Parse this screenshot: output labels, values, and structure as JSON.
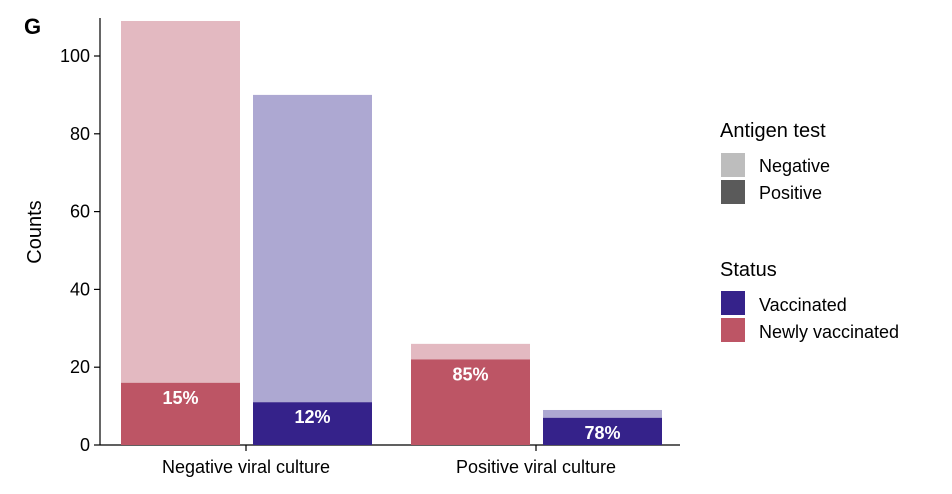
{
  "panel_label": "G",
  "chart_data": {
    "type": "bar",
    "categories": [
      "Negative viral culture",
      "Positive viral culture"
    ],
    "groups": [
      "Newly vaccinated",
      "Vaccinated"
    ],
    "ylabel": "Counts",
    "xlabel": "",
    "ylim": [
      0,
      110
    ],
    "yticks": [
      0,
      20,
      40,
      60,
      80,
      100
    ],
    "stacked": true,
    "bars": [
      {
        "category": "Negative viral culture",
        "status": "Newly vaccinated",
        "antigen_negative": 93,
        "antigen_positive": 16,
        "label": "15%"
      },
      {
        "category": "Negative viral culture",
        "status": "Vaccinated",
        "antigen_negative": 79,
        "antigen_positive": 11,
        "label": "12%"
      },
      {
        "category": "Positive viral culture",
        "status": "Newly vaccinated",
        "antigen_negative": 4,
        "antigen_positive": 22,
        "label": "85%"
      },
      {
        "category": "Positive viral culture",
        "status": "Vaccinated",
        "antigen_negative": 2,
        "antigen_positive": 7,
        "label": "78%"
      }
    ],
    "colors": {
      "Newly vaccinated": {
        "positive": "#bd5565",
        "negative": "#e3b9c1"
      },
      "Vaccinated": {
        "positive": "#35228a",
        "negative": "#ada8d2"
      }
    },
    "legend_placement": "right",
    "grid": false
  },
  "legend": {
    "antigen_title": "Antigen test",
    "antigen_items": [
      {
        "label": "Negative",
        "color": "#bdbdbd"
      },
      {
        "label": "Positive",
        "color": "#5a5a5a"
      }
    ],
    "status_title": "Status",
    "status_items": [
      {
        "label": "Vaccinated",
        "color": "#35228a"
      },
      {
        "label": "Newly vaccinated",
        "color": "#bd5565"
      }
    ]
  }
}
